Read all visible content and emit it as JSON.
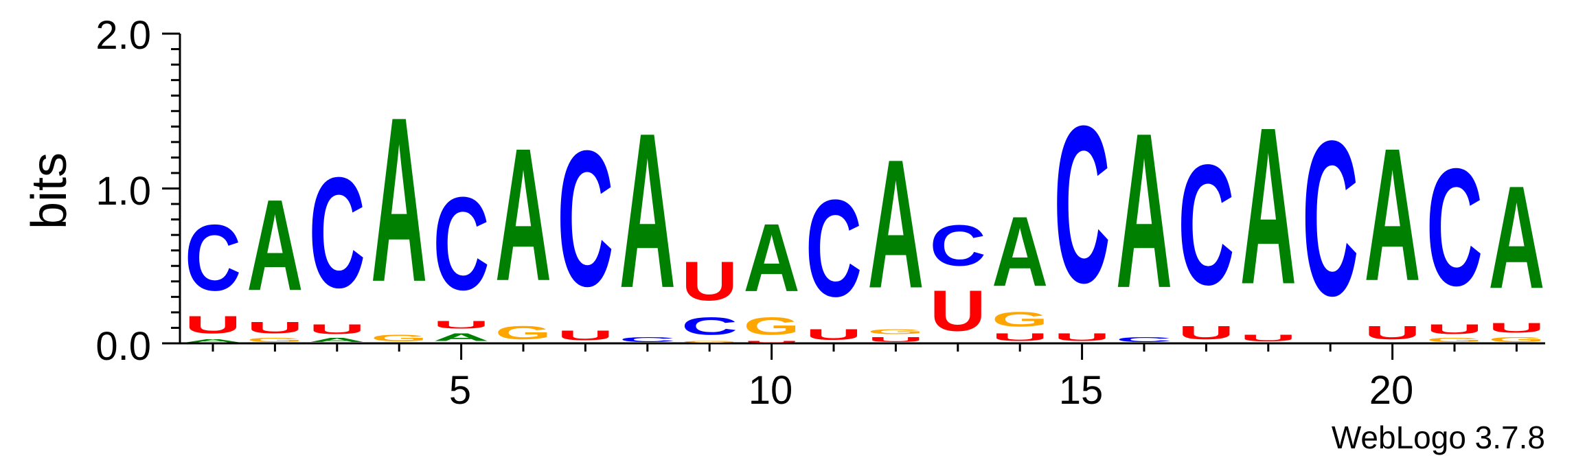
{
  "colors": {
    "A": "#008000",
    "C": "#0000ff",
    "G": "#ffa500",
    "U": "#ff0000",
    "axis": "#000000"
  },
  "chart_data": {
    "type": "sequence-logo",
    "title": "",
    "xlabel": "",
    "ylabel": "bits",
    "ylim": [
      0,
      2.0
    ],
    "yticks": [
      "0.0",
      "1.0",
      "2.0"
    ],
    "xticks": [
      "5",
      "10",
      "15",
      "20"
    ],
    "footer": "WebLogo 3.7.8",
    "positions": [
      {
        "pos": 1,
        "stack": [
          {
            "base": "A",
            "bits": 0.03
          },
          {
            "base": "U",
            "bits": 0.18
          },
          {
            "base": "C",
            "bits": 0.68
          }
        ]
      },
      {
        "pos": 2,
        "stack": [
          {
            "base": "G",
            "bits": 0.04
          },
          {
            "base": "U",
            "bits": 0.12
          },
          {
            "base": "A",
            "bits": 0.94
          }
        ]
      },
      {
        "pos": 3,
        "stack": [
          {
            "base": "A",
            "bits": 0.04
          },
          {
            "base": "U",
            "bits": 0.1
          },
          {
            "base": "C",
            "bits": 1.14
          }
        ]
      },
      {
        "pos": 4,
        "stack": [
          {
            "base": "G",
            "bits": 0.07
          },
          {
            "base": "A",
            "bits": 1.7
          }
        ]
      },
      {
        "pos": 5,
        "stack": [
          {
            "base": "A",
            "bits": 0.08
          },
          {
            "base": "U",
            "bits": 0.08
          },
          {
            "base": "C",
            "bits": 0.96
          }
        ]
      },
      {
        "pos": 6,
        "stack": [
          {
            "base": "G",
            "bits": 0.14
          },
          {
            "base": "A",
            "bits": 1.37
          }
        ]
      },
      {
        "pos": 7,
        "stack": [
          {
            "base": "U",
            "bits": 0.1
          },
          {
            "base": "C",
            "bits": 1.4
          }
        ]
      },
      {
        "pos": 8,
        "stack": [
          {
            "base": "C",
            "bits": 0.05
          },
          {
            "base": "A",
            "bits": 1.6
          }
        ]
      },
      {
        "pos": 9,
        "stack": [
          {
            "base": "G",
            "bits": 0.02
          },
          {
            "base": "C",
            "bits": 0.18
          },
          {
            "base": "U",
            "bits": 0.4
          }
        ]
      },
      {
        "pos": 10,
        "stack": [
          {
            "base": "U",
            "bits": 0.02
          },
          {
            "base": "G",
            "bits": 0.18
          },
          {
            "base": "A",
            "bits": 0.7
          }
        ]
      },
      {
        "pos": 11,
        "stack": [
          {
            "base": "U",
            "bits": 0.11
          },
          {
            "base": "C",
            "bits": 1.0
          }
        ]
      },
      {
        "pos": 12,
        "stack": [
          {
            "base": "U",
            "bits": 0.05
          },
          {
            "base": "G",
            "bits": 0.05
          },
          {
            "base": "A",
            "bits": 1.33
          }
        ]
      },
      {
        "pos": 13,
        "stack": [
          {
            "base": "U",
            "bits": 0.42
          },
          {
            "base": "C",
            "bits": 0.42
          }
        ]
      },
      {
        "pos": 14,
        "stack": [
          {
            "base": "U",
            "bits": 0.08
          },
          {
            "base": "G",
            "bits": 0.15
          },
          {
            "base": "A",
            "bits": 0.72
          }
        ]
      },
      {
        "pos": 15,
        "stack": [
          {
            "base": "U",
            "bits": 0.08
          },
          {
            "base": "C",
            "bits": 1.62
          }
        ]
      },
      {
        "pos": 16,
        "stack": [
          {
            "base": "C",
            "bits": 0.05
          },
          {
            "base": "A",
            "bits": 1.6
          }
        ]
      },
      {
        "pos": 17,
        "stack": [
          {
            "base": "U",
            "bits": 0.14
          },
          {
            "base": "C",
            "bits": 1.24
          }
        ]
      },
      {
        "pos": 18,
        "stack": [
          {
            "base": "U",
            "bits": 0.07
          },
          {
            "base": "A",
            "bits": 1.62
          }
        ]
      },
      {
        "pos": 19,
        "stack": [
          {
            "base": "C",
            "bits": 1.6
          }
        ]
      },
      {
        "pos": 20,
        "stack": [
          {
            "base": "U",
            "bits": 0.14
          },
          {
            "base": "A",
            "bits": 1.37
          }
        ]
      },
      {
        "pos": 21,
        "stack": [
          {
            "base": "G",
            "bits": 0.04
          },
          {
            "base": "U",
            "bits": 0.1
          },
          {
            "base": "C",
            "bits": 1.21
          }
        ]
      },
      {
        "pos": 22,
        "stack": [
          {
            "base": "G",
            "bits": 0.05
          },
          {
            "base": "U",
            "bits": 0.1
          },
          {
            "base": "A",
            "bits": 1.06
          }
        ]
      }
    ]
  }
}
